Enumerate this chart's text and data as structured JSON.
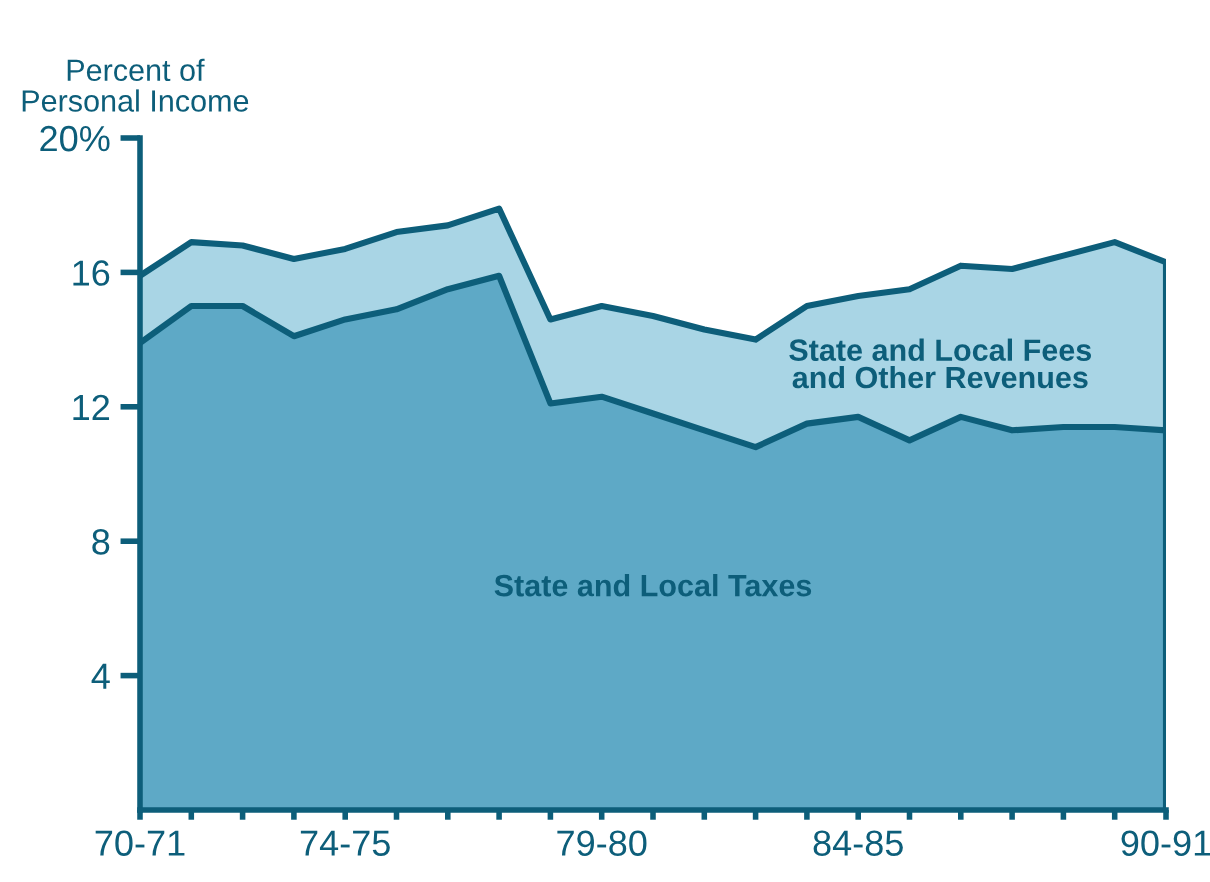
{
  "chart_data": {
    "type": "area",
    "stacked": true,
    "ylabel": "Percent of\nPersonal Income",
    "categories": [
      "70-71",
      null,
      null,
      null,
      "74-75",
      null,
      null,
      null,
      null,
      "79-80",
      null,
      null,
      null,
      null,
      "84-85",
      null,
      null,
      null,
      null,
      null,
      "90-91"
    ],
    "series": [
      {
        "name": "State and Local Taxes",
        "color": "#5ea9c6",
        "values": [
          13.9,
          15.0,
          15.0,
          14.1,
          14.6,
          14.9,
          15.5,
          15.9,
          12.1,
          12.3,
          11.8,
          11.3,
          10.8,
          11.5,
          11.7,
          11.0,
          11.7,
          11.3,
          11.4,
          11.4,
          11.3
        ]
      },
      {
        "name": "State and Local Fees\nand Other Revenues",
        "color": "#a9d5e5",
        "values": [
          2.0,
          1.9,
          1.8,
          2.3,
          2.1,
          2.3,
          1.9,
          2.0,
          2.5,
          2.7,
          2.9,
          3.0,
          3.2,
          3.5,
          3.6,
          4.5,
          4.5,
          4.8,
          5.1,
          5.5,
          5.0
        ]
      }
    ],
    "ylim": [
      0,
      20
    ],
    "yticks": [
      4,
      8,
      12,
      16,
      {
        "value": 20,
        "label": "20%"
      }
    ],
    "legend": false
  }
}
